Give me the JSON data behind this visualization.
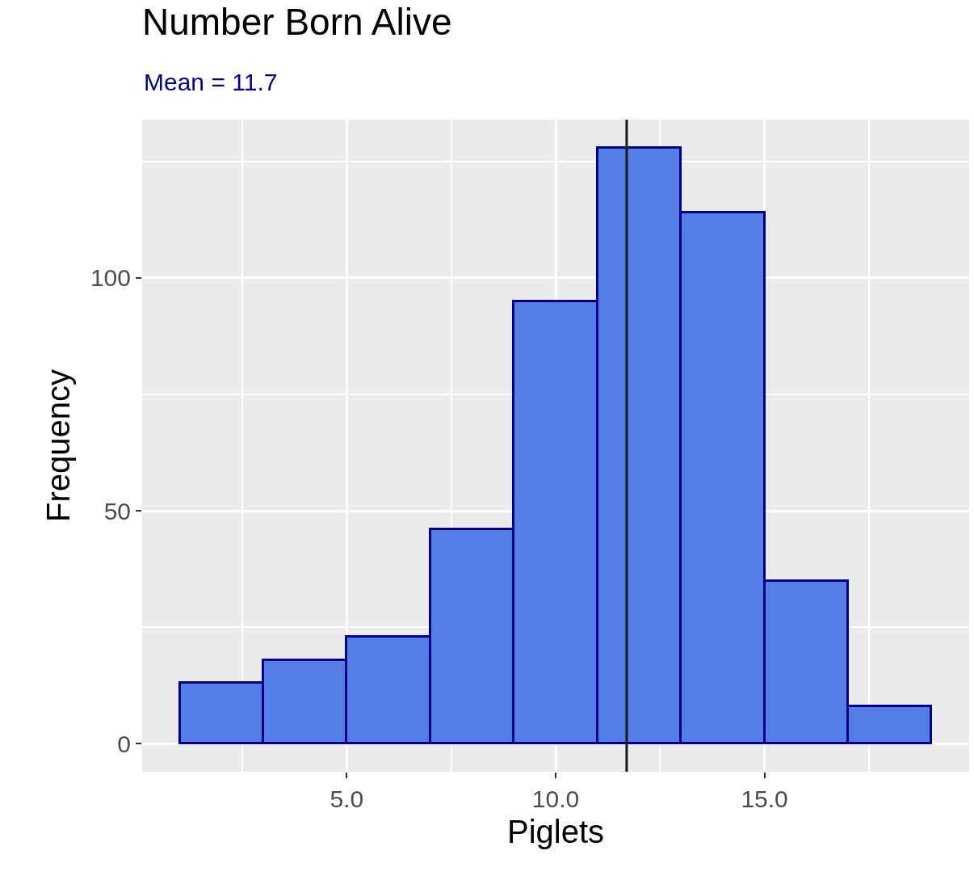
{
  "chart_data": {
    "type": "histogram",
    "title": "Number Born Alive",
    "subtitle": "Mean = 11.7",
    "xlabel": "Piglets",
    "ylabel": "Frequency",
    "bins": [
      1,
      3,
      5,
      7,
      9,
      11,
      13,
      15,
      17,
      19
    ],
    "values": [
      13,
      18,
      23,
      46,
      95,
      128,
      114,
      35,
      8
    ],
    "color": "#527ee6",
    "xlim": [
      0.1,
      19.9
    ],
    "xticks": [
      {
        "value": 5,
        "label": "5.0"
      },
      {
        "value": 10,
        "label": "10.0"
      },
      {
        "value": 15,
        "label": "15.0"
      }
    ],
    "ylim": [
      -6,
      134
    ],
    "yticks": [
      0,
      50,
      100
    ],
    "ref_lines": [
      {
        "axis": "x",
        "value": 11.7,
        "color": "#1a1a1a"
      }
    ],
    "grid": true
  }
}
